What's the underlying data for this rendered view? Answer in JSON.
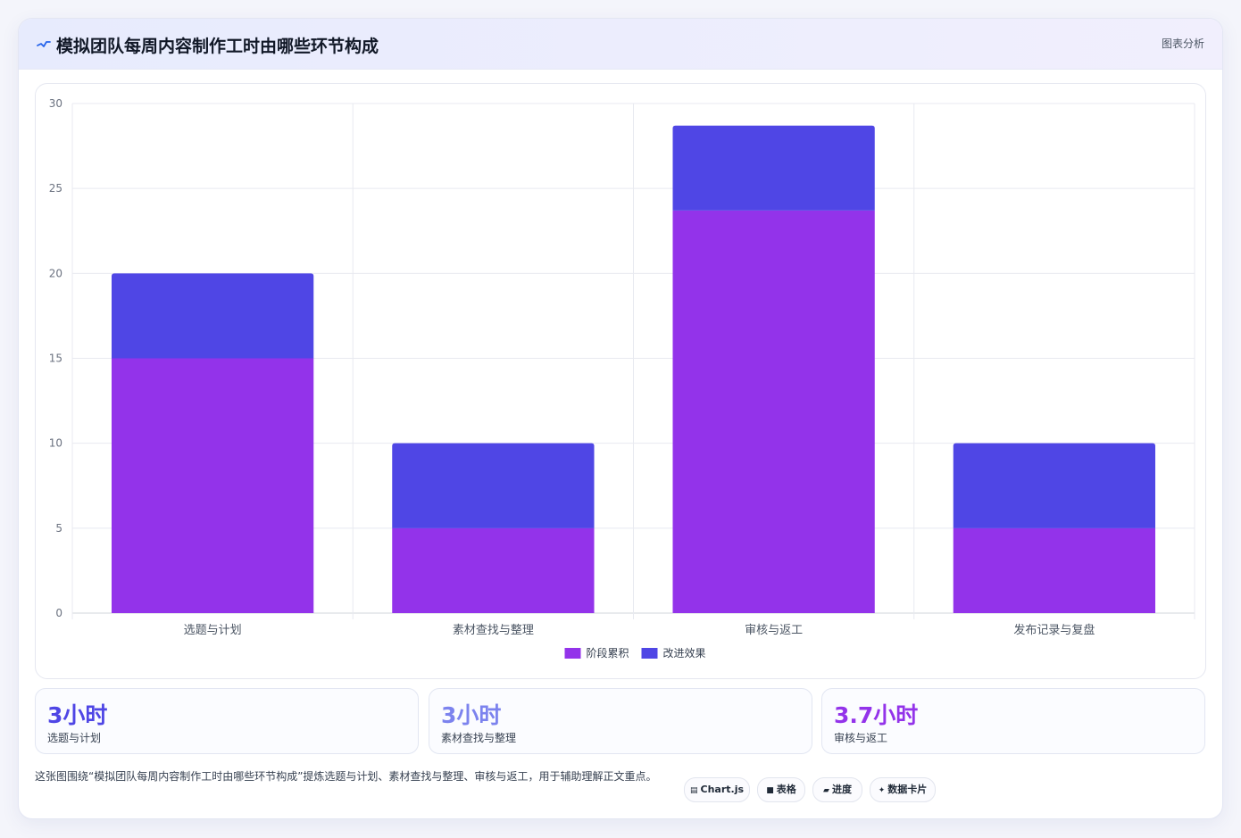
{
  "header": {
    "title": "模拟团队每周内容制作工时由哪些环节构成",
    "title_icon": "pulse-line-icon",
    "action_label": "图表分析"
  },
  "chart_data": {
    "type": "bar",
    "stacked": true,
    "categories": [
      "选题与计划",
      "素材查找与整理",
      "审核与返工",
      "发布记录与复盘"
    ],
    "series": [
      {
        "name": "阶段累积",
        "color": "#9333ea",
        "values": [
          15,
          5,
          23.7,
          5
        ]
      },
      {
        "name": "改进效果",
        "color": "#4f46e5",
        "values": [
          5,
          5,
          5,
          5
        ]
      }
    ],
    "ylim": [
      0,
      30
    ],
    "yticks": [
      0,
      5,
      10,
      15,
      20,
      25,
      30
    ],
    "grid": true,
    "legend": "bottom-center"
  },
  "stats": [
    {
      "value": "3小时",
      "label": "选题与计划",
      "color": "#4f46e5"
    },
    {
      "value": "3小时",
      "label": "素材查找与整理",
      "color": "#7c83ee"
    },
    {
      "value": "3.7小时",
      "label": "审核与返工",
      "color": "#9333ea"
    }
  ],
  "description": "这张图围绕“模拟团队每周内容制作工时由哪些环节构成”提炼选题与计划、素材查找与整理、审核与返工，用于辅助理解正文重点。",
  "tags": [
    {
      "icon": "chart-icon",
      "glyph": "▤",
      "label": "Chart.js"
    },
    {
      "icon": "table-icon",
      "glyph": "■",
      "label": "表格"
    },
    {
      "icon": "progress-icon",
      "glyph": "▰",
      "label": "进度"
    },
    {
      "icon": "sparkle-icon",
      "glyph": "✦",
      "label": "数据卡片"
    }
  ]
}
